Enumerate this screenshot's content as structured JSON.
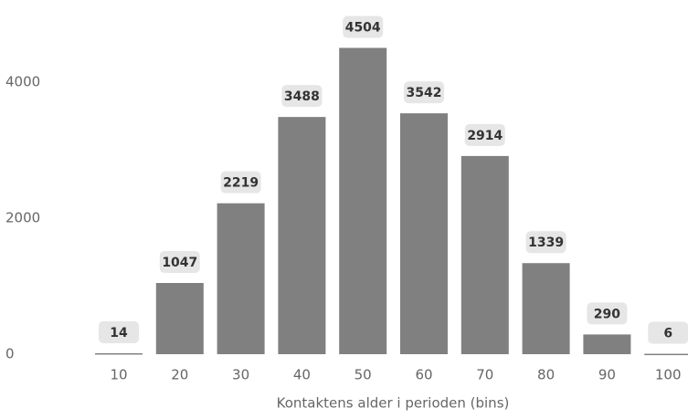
{
  "chart_data": {
    "type": "bar",
    "x_label": "Kontaktens alder i perioden (bins)",
    "categories": [
      10,
      20,
      30,
      40,
      50,
      60,
      70,
      80,
      90,
      100
    ],
    "values": [
      14,
      1047,
      2219,
      3488,
      4504,
      3542,
      2914,
      1339,
      290,
      6
    ],
    "color": "#808080",
    "ylim": [
      0,
      5000
    ],
    "yticks": [
      0,
      2000,
      4000
    ],
    "grid": false
  }
}
